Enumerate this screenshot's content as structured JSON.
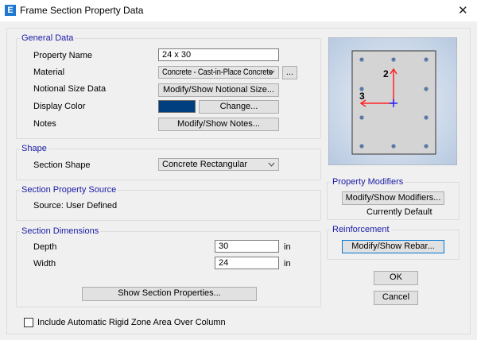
{
  "window": {
    "title": "Frame Section Property Data",
    "app_icon": "E"
  },
  "general": {
    "label": "General Data",
    "property_name_label": "Property Name",
    "property_name": "24 x 30",
    "material_label": "Material",
    "material": "Concrete - Cast-in-Place Concrete",
    "material_more": "...",
    "notional_label": "Notional Size Data",
    "notional_btn": "Modify/Show Notional Size...",
    "color_label": "Display Color",
    "color": "#003f7f",
    "change_btn": "Change...",
    "notes_label": "Notes",
    "notes_btn": "Modify/Show Notes..."
  },
  "shape": {
    "label": "Shape",
    "section_shape_label": "Section Shape",
    "section_shape": "Concrete Rectangular"
  },
  "source": {
    "label": "Section Property Source",
    "text": "Source:  User Defined"
  },
  "dimensions": {
    "label": "Section Dimensions",
    "depth_label": "Depth",
    "depth": "30",
    "width_label": "Width",
    "width": "24",
    "unit": "in",
    "show_btn": "Show Section Properties..."
  },
  "rigid_zone": {
    "label": "Include Automatic Rigid Zone Area Over Column",
    "checked": false
  },
  "preview": {
    "axis2": "2",
    "axis3": "3"
  },
  "modifiers": {
    "label": "Property Modifiers",
    "btn": "Modify/Show Modifiers...",
    "status": "Currently Default"
  },
  "reinforcement": {
    "label": "Reinforcement",
    "btn": "Modify/Show Rebar..."
  },
  "ok": "OK",
  "cancel": "Cancel"
}
